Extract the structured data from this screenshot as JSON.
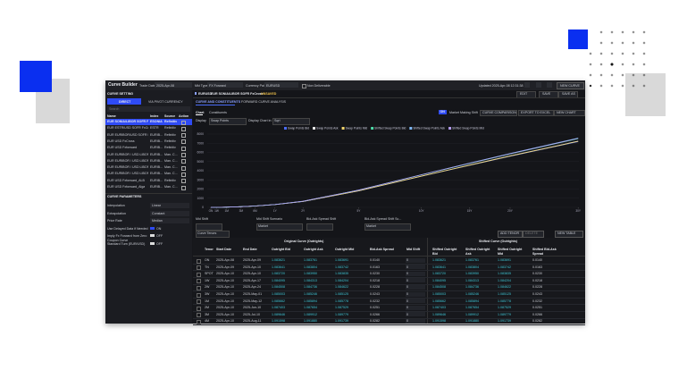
{
  "topbar": {
    "app_title": "Curve Builder",
    "trade_date_label": "Trade Date",
    "trade_date": "2025-Apr-08",
    "mkt_type_label": "Mkt Type",
    "mkt_type": "FX Forward",
    "currency_pair_label": "Currency Pair",
    "currency_pair": "EURUSD",
    "non_deliverable": "Non Deliverable",
    "updated": "Updated 2025-Apr-08 12:31:38",
    "new_curve": "NEW CURVE"
  },
  "left": {
    "header": "CURVE SETTING",
    "tabs": [
      "DIRECT",
      "VIA PIVOT CURRENCY"
    ],
    "search": "Search",
    "columns": [
      "Name",
      "Index",
      "Source",
      "Action"
    ],
    "rows": [
      [
        "EUR SONIA/LIBOR SOFR FxCro...",
        "ESONIA",
        "Refinitiv"
      ],
      [
        "EUR ESTR/USD SOFR FxCross",
        "ESTR",
        "Refinitiv"
      ],
      [
        "EUR EURIBOR/USD SOFR FX...",
        "EURIB...",
        "Refinitiv"
      ],
      [
        "EUR USD FxCross",
        "EURIB...",
        "Refinitiv"
      ],
      [
        "EUR USD Fxforward",
        "EURIB...",
        "Refinitiv"
      ],
      [
        "EUR EURIBOR / USD LIBOR...",
        "EURIB...",
        "Man. C..."
      ],
      [
        "EUR EURIBOR / USD LIBOR...",
        "EURIB...",
        "Man. C..."
      ],
      [
        "EUR EURIBOR / USD LIBOR...",
        "EURIB...",
        "Man. C..."
      ],
      [
        "EUR EURIBOR / USD LIBOR...",
        "EURIB...",
        "Man. C..."
      ],
      [
        "EUR USD Fxforward_ALB",
        "EURIB...",
        "Refinitiv"
      ],
      [
        "EUR USD Fxforward_Alga",
        "EURIB...",
        "Man. C..."
      ]
    ],
    "params_header": "CURVE PARAMETERS",
    "params": [
      [
        "Interpolation",
        "Linear"
      ],
      [
        "Extrapolation",
        "Constant"
      ],
      [
        "Price Rate",
        "Median"
      ],
      [
        "Use Delayed Data if Needed",
        "ON"
      ],
      [
        "Imply Fx Forward from Zero Coupon Curve",
        "OFF"
      ],
      [
        "Standard Turn (EUR/USD)",
        "OFF"
      ]
    ]
  },
  "main": {
    "breadcrumb": [
      "EURUSD",
      "EUR SONIA/LIBOR SOFR FxCross",
      "UNSAVED"
    ],
    "buttons": [
      "EDIT",
      "SAVE",
      "SAVE AS"
    ],
    "tabs": [
      "CURVE AND CONSTITUENTS",
      "FORWARD CURVE ANALYSIS"
    ],
    "subtabs": [
      "Chart",
      "Constituents"
    ],
    "toolbar": [
      "ON",
      "Market Making Shift",
      "CURVE COMPARISON",
      "EXPORT TO EXCEL",
      "NEW CHART"
    ],
    "display_label": "Display",
    "display": "Swap Points",
    "display_in_label": "Display Chart in:",
    "display_in": "Sqrt"
  },
  "chart": {
    "type": "line",
    "x_scale": "sqrt",
    "x": [
      1,
      7,
      30,
      91,
      182,
      365,
      730,
      1826,
      3652,
      5479,
      7305,
      10957
    ],
    "xlim": [
      0,
      11000
    ],
    "xticks": [
      {
        "value": 1,
        "label": "ON"
      },
      {
        "value": 7,
        "label": "1W"
      },
      {
        "value": 30,
        "label": "1M"
      },
      {
        "value": 91,
        "label": "3M"
      },
      {
        "value": 182,
        "label": "6M"
      },
      {
        "value": 365,
        "label": "1Y"
      },
      {
        "value": 730,
        "label": "2Y"
      },
      {
        "value": 1826,
        "label": "5Y"
      },
      {
        "value": 3652,
        "label": "10Y"
      },
      {
        "value": 5479,
        "label": "15Y"
      },
      {
        "value": 7305,
        "label": "20Y"
      },
      {
        "value": 10957,
        "label": "30Y"
      }
    ],
    "ylim": [
      0,
      8000
    ],
    "yticks": [
      0,
      1000,
      2000,
      3000,
      4000,
      5000,
      6000,
      7000,
      8000
    ],
    "series": [
      {
        "name": "Swap Points Bid",
        "color": "#4a6cf7",
        "values": [
          0.1,
          4.8,
          22.5,
          69,
          143,
          297,
          635,
          1790,
          3385,
          4580,
          5575,
          7170
        ]
      },
      {
        "name": "Swap Points Ask",
        "color": "#e6e6e6",
        "values": [
          0.3,
          5.2,
          23.5,
          71,
          147,
          303,
          645,
          1810,
          3415,
          4620,
          5625,
          7230
        ]
      },
      {
        "name": "Swap Points Mid",
        "color": "#f0d36b",
        "values": [
          0.2,
          5,
          23,
          70,
          145,
          300,
          640,
          1800,
          3400,
          4600,
          5600,
          7200
        ]
      },
      {
        "name": "Shifted Swap Points Bid",
        "color": "#4cd9a6",
        "values": [
          0.1,
          5,
          23.5,
          72,
          150,
          310,
          665,
          1870,
          3540,
          4790,
          5830,
          7500
        ]
      },
      {
        "name": "Shifted Swap Points Ask",
        "color": "#7fb8f5",
        "values": [
          0.3,
          5.4,
          24.5,
          74,
          154,
          316,
          675,
          1890,
          3570,
          4830,
          5880,
          7560
        ]
      },
      {
        "name": "Shifted Swap Points Mid",
        "color": "#b49cf0",
        "values": [
          0.2,
          5.2,
          24,
          73,
          152,
          313,
          670,
          1880,
          3555,
          4810,
          5855,
          7530
        ]
      }
    ]
  },
  "controls": {
    "labels": [
      "Mid Shift",
      "Mid Shift Scenario",
      "Bid-Ask Spread Shift",
      "Bid-Ask Spread Shift Sc..."
    ],
    "scenario": "Market",
    "scenario2": "Market",
    "tenors": "Curve Tenors",
    "buttons": [
      "ADD TENOR",
      "DELETE",
      "NEW TABLE"
    ]
  },
  "table": {
    "groups": [
      "Original Curve (Outrights)",
      "Shifted Curve (Outrights)"
    ],
    "columns": [
      "Tenor",
      "Start Date",
      "End Date",
      "Outright Bid",
      "Outright Ask",
      "Outright Mid",
      "Bid-Ask Spread",
      "Mid Shift",
      "Shifted Outright Bid",
      "Shifted Outright Ask",
      "Shifted Outright Mid",
      "Shifted Bid-Ask Spread"
    ],
    "rows": [
      [
        "ON",
        "2025-Apr-08",
        "2025-Apr-09",
        "1.083621",
        "1.083761",
        "1.083691",
        "0.0140",
        "0",
        "1.083621",
        "1.083761",
        "1.083691",
        "0.0140"
      ],
      [
        "TN",
        "2025-Apr-09",
        "2025-Apr-10",
        "1.083641",
        "1.083804",
        "1.083742",
        "0.0163",
        "0",
        "1.083641",
        "1.083804",
        "1.083742",
        "0.0163"
      ],
      [
        "SPOT",
        "2025-Apr-10",
        "2025-Apr-10",
        "1.083720",
        "1.083950",
        "1.083835",
        "0.0230",
        "0",
        "1.083720",
        "1.083950",
        "1.083835",
        "0.0230"
      ],
      [
        "1W",
        "2025-Apr-10",
        "2025-Apr-17",
        "1.084095",
        "1.084313",
        "1.084204",
        "0.0218",
        "0",
        "1.084095",
        "1.084313",
        "1.084204",
        "0.0218"
      ],
      [
        "2W",
        "2025-Apr-10",
        "2025-Apr-24",
        "1.084508",
        "1.084736",
        "1.084622",
        "0.0228",
        "0",
        "1.084508",
        "1.084736",
        "1.084622",
        "0.0228"
      ],
      [
        "3W",
        "2025-Apr-10",
        "2025-May-01",
        "1.085003",
        "1.085246",
        "1.085125",
        "0.0243",
        "0",
        "1.085003",
        "1.085246",
        "1.085125",
        "0.0243"
      ],
      [
        "1M",
        "2025-Apr-10",
        "2025-May-12",
        "1.085662",
        "1.085894",
        "1.085778",
        "0.0232",
        "0",
        "1.085662",
        "1.085894",
        "1.085778",
        "0.0232"
      ],
      [
        "2M",
        "2025-Apr-10",
        "2025-Jun-10",
        "1.087403",
        "1.087654",
        "1.087529",
        "0.0251",
        "0",
        "1.087403",
        "1.087654",
        "1.087529",
        "0.0251"
      ],
      [
        "3M",
        "2025-Apr-10",
        "2025-Jul-10",
        "1.089646",
        "1.089912",
        "1.089779",
        "0.0266",
        "0",
        "1.089646",
        "1.089912",
        "1.089779",
        "0.0266"
      ],
      [
        "4M",
        "2025-Apr-10",
        "2025-Aug-11",
        "1.091598",
        "1.091880",
        "1.091739",
        "0.0282",
        "0",
        "1.091598",
        "1.091880",
        "1.091739",
        "0.0282"
      ]
    ]
  }
}
